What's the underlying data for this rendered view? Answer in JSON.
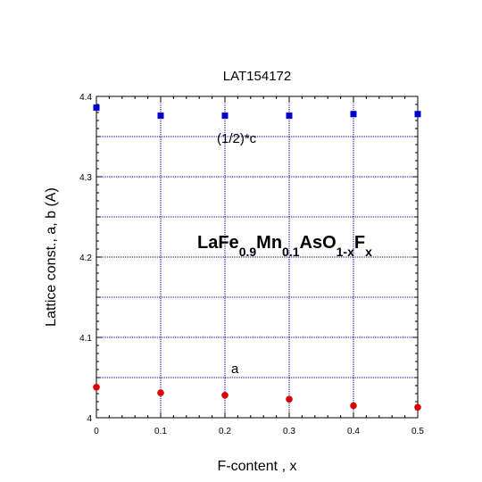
{
  "chart_data": {
    "type": "scatter",
    "title": "LAT154172",
    "xlabel": "F-content , x",
    "ylabel": "Lattice const., a, b (A)",
    "xlim": [
      0,
      0.5
    ],
    "ylim": [
      4.0,
      4.4
    ],
    "x_ticks": [
      "0",
      "0.1",
      "0.2",
      "0.3",
      "0.4",
      "0.5"
    ],
    "y_ticks": [
      "4",
      "4.1",
      "4.2",
      "4.3",
      "4.4"
    ],
    "grid": true,
    "series": [
      {
        "name": "(1/2)*c",
        "marker": "square",
        "color": "#0000cc",
        "x": [
          0,
          0.1,
          0.2,
          0.3,
          0.4,
          0.5
        ],
        "values": [
          4.386,
          4.376,
          4.376,
          4.376,
          4.378,
          4.378
        ]
      },
      {
        "name": "a",
        "marker": "circle",
        "color": "#dd0000",
        "x": [
          0,
          0.1,
          0.2,
          0.3,
          0.4,
          0.5
        ],
        "values": [
          4.038,
          4.031,
          4.028,
          4.023,
          4.015,
          4.013
        ]
      }
    ],
    "annotations": {
      "formula": {
        "parts": [
          {
            "text": "LaFe",
            "sub": false
          },
          {
            "text": "0.9",
            "sub": true
          },
          {
            "text": "Mn",
            "sub": false
          },
          {
            "text": "0.1",
            "sub": true
          },
          {
            "text": "AsO",
            "sub": false
          },
          {
            "text": "1-x",
            "sub": true
          },
          {
            "text": "F",
            "sub": false
          },
          {
            "text": "x",
            "sub": true
          }
        ]
      }
    }
  }
}
